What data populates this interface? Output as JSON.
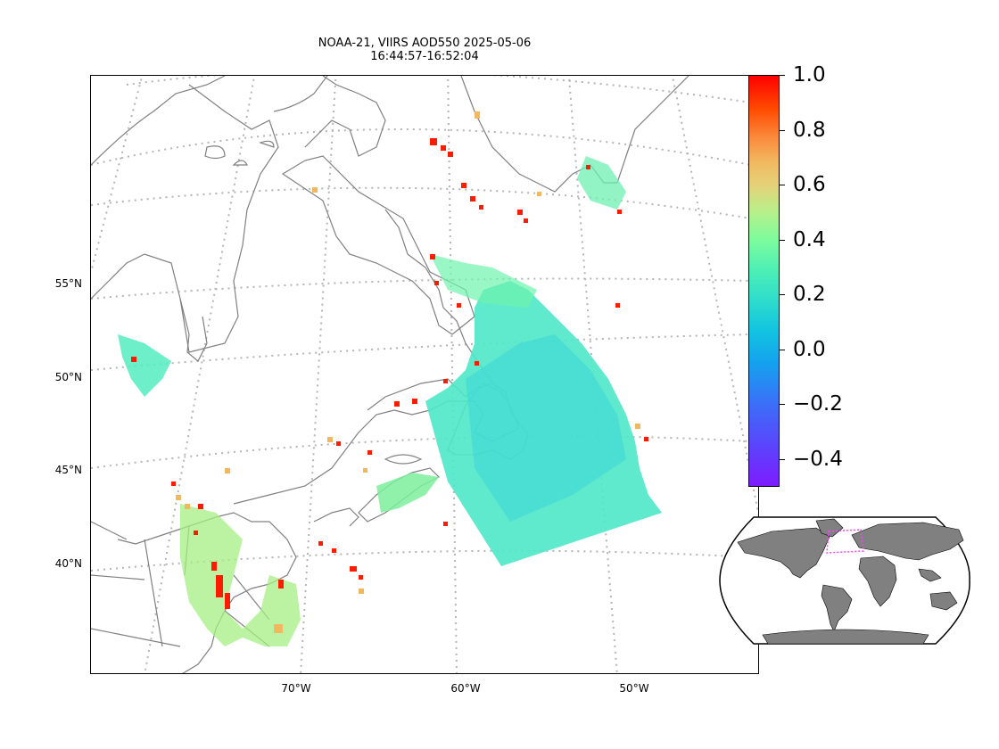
{
  "title": {
    "line1": "NOAA-21, VIIRS AOD550 2025-05-06",
    "line2": "16:44:57-16:52:04"
  },
  "map": {
    "lat_labels": [
      "55°N",
      "50°N",
      "45°N",
      "40°N"
    ],
    "lon_labels": [
      "70°W",
      "60°W",
      "50°W"
    ],
    "graticule_style": "dotted",
    "land_outline_color": "#808080"
  },
  "colorbar": {
    "colormap": "rainbow",
    "range": [
      -0.5,
      1.0
    ],
    "tick_labels": [
      "1.0",
      "0.8",
      "0.6",
      "0.4",
      "0.2",
      "0.0",
      "−0.2",
      "−0.4"
    ]
  },
  "inset": {
    "projection": "global Robinson",
    "land_color": "#808080",
    "extent_box_color": "#ff44ff"
  }
}
